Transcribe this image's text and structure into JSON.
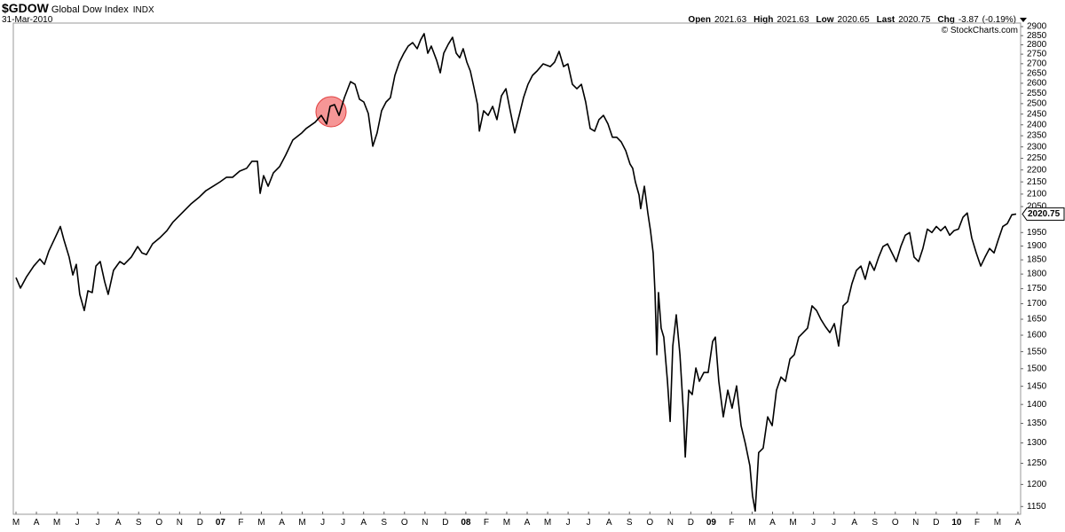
{
  "chart_data": {
    "type": "line",
    "title": "$GDOW",
    "subtitle": "Global Dow Index",
    "exchange": "INDX",
    "date": "31-Mar-2010",
    "watermark": "© StockCharts.com",
    "quote": [
      {
        "label": "Open",
        "value": 2021.63
      },
      {
        "label": "High",
        "value": 2021.63
      },
      {
        "label": "Low",
        "value": 2020.65
      },
      {
        "label": "Last",
        "value": 2020.75
      },
      {
        "label": "Chg",
        "value": -3.87,
        "pct": "(-0.19%)"
      }
    ],
    "color": "#000000",
    "log_scale": true,
    "x": [
      0.0,
      0.22,
      0.52,
      0.87,
      1.17,
      1.39,
      1.61,
      1.91,
      2.17,
      2.34,
      2.6,
      2.78,
      2.95,
      3.12,
      3.34,
      3.52,
      3.73,
      3.91,
      4.12,
      4.34,
      4.51,
      4.77,
      5.08,
      5.29,
      5.64,
      5.95,
      6.16,
      6.38,
      6.68,
      7.03,
      7.38,
      7.68,
      8.12,
      8.55,
      8.98,
      9.29,
      9.64,
      9.98,
      10.29,
      10.59,
      10.94,
      11.28,
      11.54,
      11.81,
      11.94,
      12.11,
      12.33,
      12.59,
      12.89,
      13.19,
      13.54,
      13.98,
      14.19,
      14.63,
      14.93,
      15.19,
      15.36,
      15.58,
      15.8,
      16.06,
      16.36,
      16.58,
      16.8,
      17.01,
      17.23,
      17.45,
      17.66,
      17.88,
      18.1,
      18.31,
      18.53,
      18.75,
      18.97,
      19.18,
      19.4,
      19.62,
      19.79,
      19.96,
      20.14,
      20.31,
      20.57,
      20.75,
      20.92,
      21.14,
      21.35,
      21.53,
      21.7,
      21.87,
      22.05,
      22.22,
      22.39,
      22.57,
      22.66,
      22.87,
      23.09,
      23.31,
      23.52,
      23.74,
      23.96,
      24.17,
      24.39,
      24.61,
      24.82,
      25.04,
      25.26,
      25.48,
      25.78,
      26.13,
      26.34,
      26.56,
      26.78,
      26.99,
      27.21,
      27.43,
      27.65,
      27.86,
      28.08,
      28.3,
      28.51,
      28.73,
      28.95,
      29.17,
      29.38,
      29.6,
      29.82,
      30.03,
      30.16,
      30.29,
      30.47,
      30.55,
      30.73,
      30.9,
      31.03,
      31.16,
      31.25,
      31.34,
      31.42,
      31.55,
      31.68,
      31.86,
      31.99,
      32.12,
      32.29,
      32.47,
      32.64,
      32.73,
      32.9,
      33.07,
      33.25,
      33.42,
      33.64,
      33.85,
      34.07,
      34.2,
      34.37,
      34.59,
      34.81,
      35.02,
      35.24,
      35.46,
      35.67,
      35.89,
      36.02,
      36.15,
      36.32,
      36.54,
      36.76,
      36.98,
      37.19,
      37.41,
      37.63,
      37.85,
      38.06,
      38.28,
      38.5,
      38.71,
      38.93,
      39.15,
      39.36,
      39.58,
      39.8,
      40.02,
      40.23,
      40.45,
      40.67,
      40.88,
      41.1,
      41.32,
      41.53,
      41.75,
      41.97,
      42.19,
      42.4,
      42.62,
      42.84,
      43.05,
      43.27,
      43.49,
      43.7,
      43.92,
      44.14,
      44.35,
      44.57,
      44.79,
      45.01,
      45.22,
      45.44,
      45.66,
      45.87,
      46.09,
      46.31,
      46.52,
      46.74,
      46.96,
      47.18,
      47.39,
      47.61,
      47.83,
      48.04,
      48.26,
      48.48,
      48.7,
      48.91
    ],
    "values": [
      1788,
      1752,
      1791,
      1828,
      1853,
      1834,
      1882,
      1930,
      1973,
      1924,
      1860,
      1797,
      1834,
      1731,
      1678,
      1743,
      1737,
      1828,
      1844,
      1773,
      1731,
      1813,
      1844,
      1834,
      1860,
      1898,
      1875,
      1869,
      1908,
      1930,
      1957,
      1990,
      2025,
      2060,
      2089,
      2114,
      2132,
      2150,
      2169,
      2169,
      2195,
      2207,
      2237,
      2237,
      2103,
      2176,
      2132,
      2188,
      2214,
      2264,
      2331,
      2363,
      2383,
      2412,
      2444,
      2404,
      2487,
      2495,
      2444,
      2529,
      2608,
      2595,
      2521,
      2508,
      2453,
      2303,
      2363,
      2466,
      2508,
      2529,
      2640,
      2708,
      2755,
      2793,
      2812,
      2779,
      2827,
      2861,
      2755,
      2793,
      2718,
      2653,
      2755,
      2803,
      2841,
      2755,
      2731,
      2779,
      2708,
      2662,
      2582,
      2495,
      2371,
      2466,
      2444,
      2487,
      2424,
      2538,
      2573,
      2466,
      2363,
      2444,
      2529,
      2595,
      2640,
      2662,
      2699,
      2685,
      2708,
      2765,
      2685,
      2699,
      2595,
      2573,
      2595,
      2508,
      2383,
      2371,
      2424,
      2444,
      2404,
      2343,
      2343,
      2322,
      2283,
      2225,
      2207,
      2150,
      2096,
      2042,
      2132,
      2025,
      1957,
      1875,
      1737,
      1541,
      1737,
      1622,
      1594,
      1464,
      1355,
      1567,
      1664,
      1541,
      1379,
      1265,
      1439,
      1427,
      1502,
      1464,
      1489,
      1489,
      1581,
      1594,
      1464,
      1367,
      1439,
      1390,
      1451,
      1344,
      1298,
      1244,
      1174,
      1140,
      1276,
      1287,
      1367,
      1344,
      1439,
      1476,
      1464,
      1528,
      1541,
      1594,
      1608,
      1622,
      1693,
      1678,
      1650,
      1627,
      1608,
      1636,
      1567,
      1693,
      1707,
      1767,
      1813,
      1828,
      1782,
      1844,
      1813,
      1860,
      1898,
      1908,
      1875,
      1844,
      1898,
      1940,
      1950,
      1860,
      1844,
      1891,
      1963,
      1950,
      1973,
      1957,
      1973,
      1940,
      1957,
      1963,
      2008,
      2025,
      1930,
      1875,
      1828,
      1860,
      1891,
      1875,
      1924,
      1973,
      1984,
      2018,
      2020.75
    ],
    "xlim": [
      -0.13,
      49.13
    ],
    "ylim": [
      1133,
      2920
    ],
    "yticks": [
      1150,
      1200,
      1250,
      1300,
      1350,
      1400,
      1450,
      1500,
      1550,
      1600,
      1650,
      1700,
      1750,
      1800,
      1850,
      1900,
      1950,
      2050,
      2100,
      2150,
      2200,
      2250,
      2300,
      2350,
      2400,
      2450,
      2500,
      2550,
      2600,
      2650,
      2700,
      2750,
      2800,
      2850,
      2900
    ],
    "xticks": [
      {
        "value": 0,
        "label": "M"
      },
      {
        "value": 1,
        "label": "A"
      },
      {
        "value": 2,
        "label": "M"
      },
      {
        "value": 3,
        "label": "J"
      },
      {
        "value": 4,
        "label": "J"
      },
      {
        "value": 5,
        "label": "A"
      },
      {
        "value": 6,
        "label": "S"
      },
      {
        "value": 7,
        "label": "O"
      },
      {
        "value": 8,
        "label": "N"
      },
      {
        "value": 9,
        "label": "D"
      },
      {
        "value": 10,
        "label": "07"
      },
      {
        "value": 11,
        "label": "F"
      },
      {
        "value": 12,
        "label": "M"
      },
      {
        "value": 13,
        "label": "A"
      },
      {
        "value": 14,
        "label": "M"
      },
      {
        "value": 15,
        "label": "J"
      },
      {
        "value": 16,
        "label": "J"
      },
      {
        "value": 17,
        "label": "A"
      },
      {
        "value": 18,
        "label": "S"
      },
      {
        "value": 19,
        "label": "O"
      },
      {
        "value": 20,
        "label": "N"
      },
      {
        "value": 21,
        "label": "D"
      },
      {
        "value": 22,
        "label": "08"
      },
      {
        "value": 23,
        "label": "F"
      },
      {
        "value": 24,
        "label": "M"
      },
      {
        "value": 25,
        "label": "A"
      },
      {
        "value": 26,
        "label": "M"
      },
      {
        "value": 27,
        "label": "J"
      },
      {
        "value": 28,
        "label": "J"
      },
      {
        "value": 29,
        "label": "A"
      },
      {
        "value": 30,
        "label": "S"
      },
      {
        "value": 31,
        "label": "O"
      },
      {
        "value": 32,
        "label": "N"
      },
      {
        "value": 33,
        "label": "D"
      },
      {
        "value": 34,
        "label": "09"
      },
      {
        "value": 35,
        "label": "F"
      },
      {
        "value": 36,
        "label": "M"
      },
      {
        "value": 37,
        "label": "A"
      },
      {
        "value": 38,
        "label": "M"
      },
      {
        "value": 39,
        "label": "J"
      },
      {
        "value": 40,
        "label": "J"
      },
      {
        "value": 41,
        "label": "A"
      },
      {
        "value": 42,
        "label": "S"
      },
      {
        "value": 43,
        "label": "O"
      },
      {
        "value": 44,
        "label": "N"
      },
      {
        "value": 45,
        "label": "D"
      },
      {
        "value": 46,
        "label": "10"
      },
      {
        "value": 47,
        "label": "F"
      },
      {
        "value": 48,
        "label": "M"
      },
      {
        "value": 49,
        "label": "A"
      }
    ]
  }
}
